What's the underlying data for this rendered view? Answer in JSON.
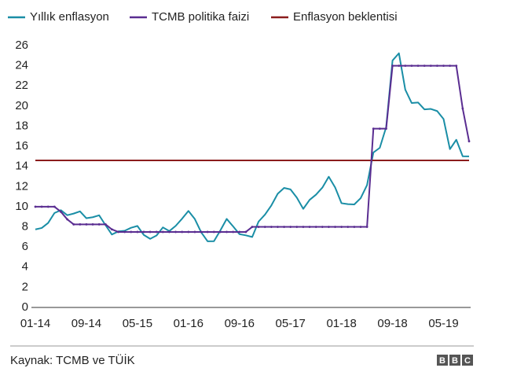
{
  "chart_data": {
    "type": "line",
    "categories": [
      "01-14",
      null,
      null,
      null,
      null,
      null,
      null,
      null,
      "09-14",
      null,
      null,
      null,
      null,
      null,
      null,
      null,
      "05-15",
      null,
      null,
      null,
      null,
      null,
      null,
      null,
      "01-16",
      null,
      null,
      null,
      null,
      null,
      null,
      null,
      "09-16",
      null,
      null,
      null,
      null,
      null,
      null,
      null,
      "05-17",
      null,
      null,
      null,
      null,
      null,
      null,
      null,
      "01-18",
      null,
      null,
      null,
      null,
      null,
      null,
      null,
      "09-18",
      null,
      null,
      null,
      null,
      null,
      null,
      null,
      "05-19",
      null,
      null,
      null,
      null
    ],
    "series": [
      {
        "name": "Yıllık enflasyon",
        "color": "#1a8ea6",
        "values": [
          7.75,
          7.89,
          8.39,
          9.38,
          9.66,
          9.16,
          9.32,
          9.54,
          8.86,
          8.96,
          9.15,
          8.17,
          7.24,
          7.55,
          7.61,
          7.91,
          8.09,
          7.2,
          6.81,
          7.14,
          7.95,
          7.58,
          8.1,
          8.81,
          9.58,
          8.78,
          7.46,
          6.57,
          6.58,
          7.64,
          8.79,
          8.05,
          7.28,
          7.16,
          7.0,
          8.53,
          9.22,
          10.13,
          11.29,
          11.87,
          11.72,
          10.9,
          9.79,
          10.68,
          11.2,
          11.9,
          12.98,
          11.92,
          10.35,
          10.26,
          10.23,
          10.85,
          12.15,
          15.39,
          15.85,
          17.9,
          24.52,
          25.24,
          21.62,
          20.3,
          20.35,
          19.67,
          19.71,
          19.5,
          18.71,
          15.72,
          16.65,
          15.01,
          15.0
        ]
      },
      {
        "name": "TCMB politika faizi",
        "color": "#5a2d91",
        "values": [
          10,
          10,
          10,
          10,
          9.5,
          8.75,
          8.25,
          8.25,
          8.25,
          8.25,
          8.25,
          8.25,
          7.75,
          7.5,
          7.5,
          7.5,
          7.5,
          7.5,
          7.5,
          7.5,
          7.5,
          7.5,
          7.5,
          7.5,
          7.5,
          7.5,
          7.5,
          7.5,
          7.5,
          7.5,
          7.5,
          7.5,
          7.5,
          7.5,
          8,
          8,
          8,
          8,
          8,
          8,
          8,
          8,
          8,
          8,
          8,
          8,
          8,
          8,
          8,
          8,
          8,
          8,
          8,
          17.75,
          17.75,
          17.75,
          24,
          24,
          24,
          24,
          24,
          24,
          24,
          24,
          24,
          24,
          24,
          19.75,
          16.5
        ]
      },
      {
        "name": "Enflasyon beklentisi",
        "color": "#8b1c1c",
        "values": [
          14.6,
          14.6,
          14.6,
          14.6,
          14.6,
          14.6,
          14.6,
          14.6,
          14.6,
          14.6,
          14.6,
          14.6,
          14.6,
          14.6,
          14.6,
          14.6,
          14.6,
          14.6,
          14.6,
          14.6,
          14.6,
          14.6,
          14.6,
          14.6,
          14.6,
          14.6,
          14.6,
          14.6,
          14.6,
          14.6,
          14.6,
          14.6,
          14.6,
          14.6,
          14.6,
          14.6,
          14.6,
          14.6,
          14.6,
          14.6,
          14.6,
          14.6,
          14.6,
          14.6,
          14.6,
          14.6,
          14.6,
          14.6,
          14.6,
          14.6,
          14.6,
          14.6,
          14.6,
          14.6,
          14.6,
          14.6,
          14.6,
          14.6,
          14.6,
          14.6,
          14.6,
          14.6,
          14.6,
          14.6,
          14.6,
          14.6,
          14.6,
          14.6,
          14.6
        ]
      }
    ],
    "ylim": [
      0,
      26
    ],
    "yticks": [
      0,
      2,
      4,
      6,
      8,
      10,
      12,
      14,
      16,
      18,
      20,
      22,
      24,
      26
    ],
    "grid": false,
    "source": "Kaynak: TCMB ve TÜİK",
    "logo": [
      "B",
      "B",
      "C"
    ]
  }
}
